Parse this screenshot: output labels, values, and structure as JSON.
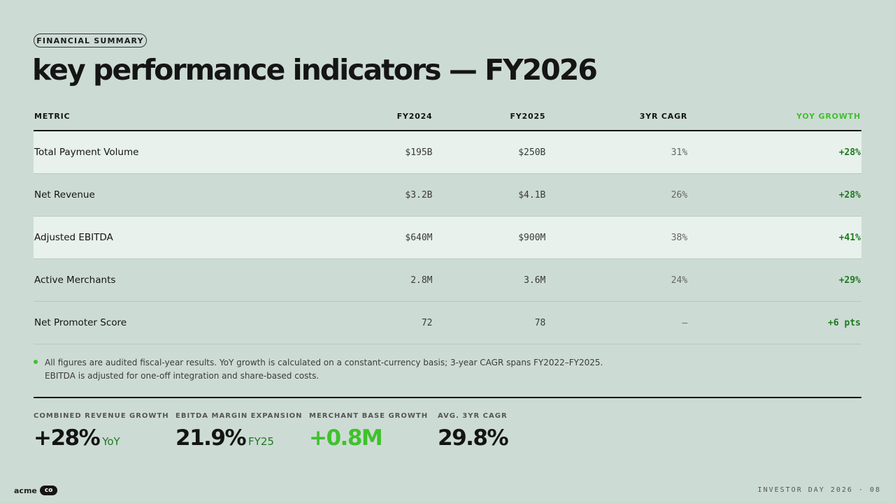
{
  "header": {
    "tag": "FINANCIAL SUMMARY",
    "title": "key performance indicators — FY2026"
  },
  "table": {
    "columns": [
      "METRIC",
      "FY2024",
      "FY2025",
      "3YR CAGR",
      "YOY GROWTH"
    ],
    "rows": [
      {
        "metric": "Total Payment Volume",
        "fy2024": "$195B",
        "fy2025": "$250B",
        "cagr": "31%",
        "yoy": "+28%"
      },
      {
        "metric": "Net Revenue",
        "fy2024": "$3.2B",
        "fy2025": "$4.1B",
        "cagr": "26%",
        "yoy": "+28%"
      },
      {
        "metric": "Adjusted EBITDA",
        "fy2024": "$640M",
        "fy2025": "$900M",
        "cagr": "38%",
        "yoy": "+41%"
      },
      {
        "metric": "Active Merchants",
        "fy2024": "2.8M",
        "fy2025": "3.6M",
        "cagr": "24%",
        "yoy": "+29%"
      },
      {
        "metric": "Net Promoter Score",
        "fy2024": "72",
        "fy2025": "78",
        "cagr": "—",
        "yoy": "+6 pts"
      }
    ]
  },
  "note": "All figures are audited fiscal-year results. YoY growth is calculated on a constant-currency basis; 3-year CAGR spans FY2022–FY2025. EBITDA is adjusted for one-off integration and share-based costs.",
  "kpis": [
    {
      "label": "COMBINED REVENUE GROWTH",
      "value": "+28%",
      "suffix": "YoY"
    },
    {
      "label": "EBITDA MARGIN EXPANSION",
      "value": "21.9%",
      "suffix": "FY25"
    },
    {
      "label": "MERCHANT BASE GROWTH",
      "value": "+0.8M",
      "suffix": ""
    },
    {
      "label": "AVG. 3YR CAGR",
      "value": "29.8%",
      "suffix": ""
    }
  ],
  "footer": {
    "brand": "acme",
    "brand_chip": "co",
    "right": "INVESTOR DAY 2026 · 08"
  },
  "colors": {
    "background": "#cddbd5",
    "accent_green": "#3fc22a",
    "dark_green": "#1f7a1f",
    "row_highlight": "#e8f1ec"
  }
}
